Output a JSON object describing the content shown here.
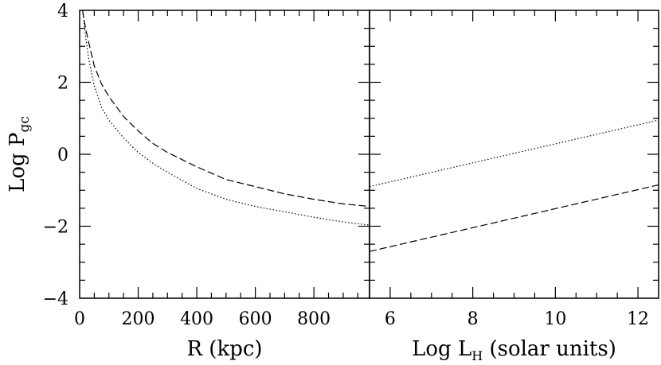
{
  "chart_data": [
    {
      "type": "line",
      "panel": "left",
      "xlabel": "R (kpc)",
      "ylabel_main": "Log P",
      "ylabel_sub": "gc",
      "xlim": [
        0,
        990
      ],
      "ylim": [
        -4,
        4
      ],
      "xticks_major": [
        0,
        200,
        400,
        600,
        800
      ],
      "xtick_labels": [
        "0",
        "200",
        "400",
        "600",
        "800"
      ],
      "yticks_major": [
        -4,
        -2,
        0,
        2,
        4
      ],
      "ytick_labels": [
        "−4",
        "−2",
        "0",
        "2",
        "4"
      ],
      "series": [
        {
          "style": "dashed",
          "x": [
            10,
            20,
            30,
            50,
            75,
            100,
            150,
            200,
            250,
            300,
            400,
            500,
            600,
            700,
            800,
            900,
            990
          ],
          "y": [
            4.0,
            3.5,
            3.15,
            2.45,
            1.95,
            1.6,
            1.05,
            0.65,
            0.3,
            0.05,
            -0.35,
            -0.7,
            -0.9,
            -1.1,
            -1.25,
            -1.38,
            -1.45
          ]
        },
        {
          "style": "dotted",
          "x": [
            10,
            20,
            30,
            50,
            75,
            100,
            150,
            200,
            250,
            300,
            400,
            500,
            600,
            700,
            800,
            900,
            990
          ],
          "y": [
            4.0,
            3.3,
            2.7,
            1.9,
            1.3,
            0.95,
            0.45,
            0.05,
            -0.25,
            -0.5,
            -0.95,
            -1.25,
            -1.45,
            -1.6,
            -1.75,
            -1.88,
            -1.97
          ]
        }
      ]
    },
    {
      "type": "line",
      "panel": "right",
      "xlabel_main": "Log L",
      "xlabel_sub": "H",
      "xlabel_tail": " (solar units)",
      "xlim": [
        5.5,
        12.5
      ],
      "ylim": [
        -4,
        4
      ],
      "xticks_major": [
        6,
        8,
        10,
        12
      ],
      "xtick_labels": [
        "6",
        "8",
        "10",
        "12"
      ],
      "series": [
        {
          "style": "dotted",
          "x": [
            5.5,
            12.5
          ],
          "y": [
            -0.9,
            0.95
          ]
        },
        {
          "style": "dashed",
          "x": [
            5.5,
            12.5
          ],
          "y": [
            -2.7,
            -0.85
          ]
        }
      ]
    }
  ]
}
